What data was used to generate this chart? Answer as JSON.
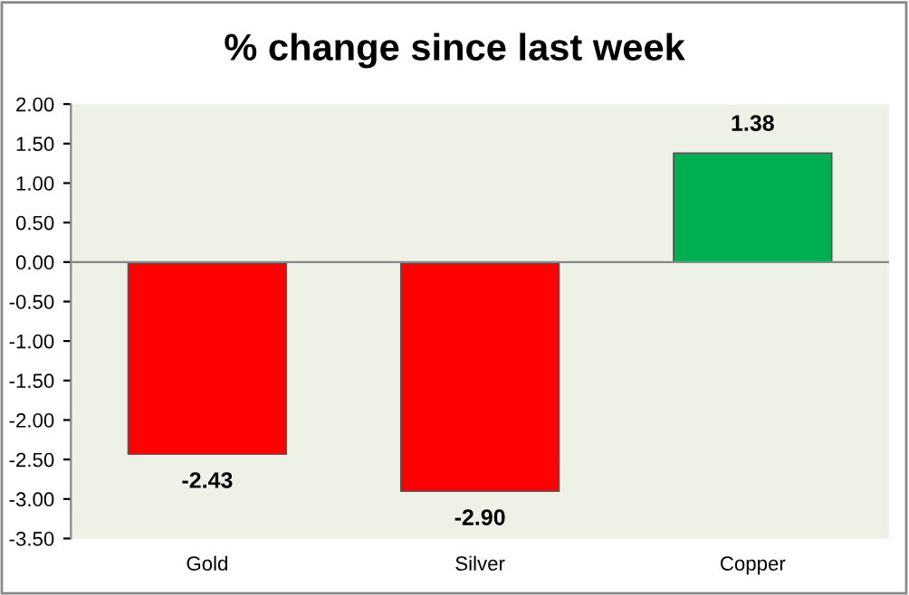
{
  "chart_data": {
    "type": "bar",
    "title": "% change since last week",
    "categories": [
      "Gold",
      "Silver",
      "Copper"
    ],
    "values": [
      -2.43,
      -2.9,
      1.38
    ],
    "colors": [
      "#ff0000",
      "#ff0000",
      "#00b050"
    ],
    "value_labels": [
      "-2.43",
      "-2.90",
      "1.38"
    ],
    "ylim": [
      -3.5,
      2.0
    ],
    "yticks": [
      {
        "value": 2.0,
        "label": "2.00"
      },
      {
        "value": 1.5,
        "label": "1.50"
      },
      {
        "value": 1.0,
        "label": "1.00"
      },
      {
        "value": 0.5,
        "label": "0.50"
      },
      {
        "value": 0.0,
        "label": "0.00"
      },
      {
        "value": -0.5,
        "label": "-0.50"
      },
      {
        "value": -1.0,
        "label": "-1.00"
      },
      {
        "value": -1.5,
        "label": "-1.50"
      },
      {
        "value": -2.0,
        "label": "-2.00"
      },
      {
        "value": -2.5,
        "label": "-2.50"
      },
      {
        "value": -3.0,
        "label": "-3.00"
      },
      {
        "value": -3.5,
        "label": "-3.50"
      }
    ],
    "ref_lines": [
      {
        "axis": "y",
        "value": 0,
        "color": "#888888"
      }
    ],
    "grid": false,
    "legend": false
  }
}
